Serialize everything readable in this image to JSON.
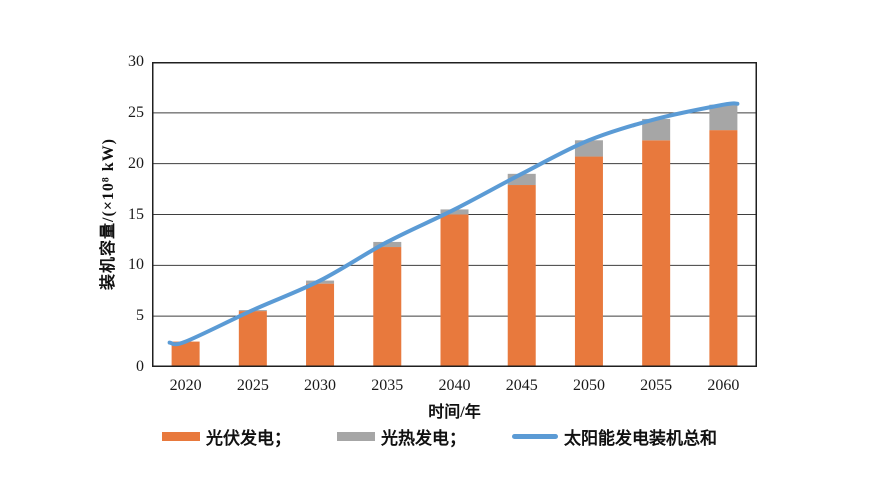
{
  "chart_data": {
    "type": "bar",
    "subtype": "stacked-bars-with-line-overlay",
    "title": "",
    "xlabel": "时间/年",
    "ylabel": "装机容量/(×10⁸ kW)",
    "categories": [
      "2020",
      "2025",
      "2030",
      "2035",
      "2040",
      "2045",
      "2050",
      "2055",
      "2060"
    ],
    "series": [
      {
        "name": "光伏发电",
        "type": "bar",
        "color": "#E8793D",
        "values": [
          2.5,
          5.5,
          8.2,
          11.8,
          15.0,
          17.9,
          20.7,
          22.3,
          23.3
        ]
      },
      {
        "name": "光热发电",
        "type": "bar",
        "color": "#A6A6A6",
        "values": [
          0,
          0.1,
          0.3,
          0.5,
          0.5,
          1.1,
          1.6,
          2.1,
          2.5
        ]
      },
      {
        "name": "太阳能发电装机总和",
        "type": "line",
        "color": "#5B9BD5",
        "values": [
          2.5,
          5.6,
          8.5,
          12.3,
          15.5,
          19.0,
          22.3,
          24.4,
          25.8
        ]
      }
    ],
    "ylim": [
      0,
      30
    ],
    "yticks": [
      0,
      5,
      10,
      15,
      20,
      25,
      30
    ],
    "grid": "horizontal",
    "gridline_color": "#3f3f3f",
    "border_color": "#1f1f1f",
    "legend_position": "bottom",
    "legend": [
      "光伏发电；",
      "光热发电；",
      "太阳能发电装机总和"
    ]
  }
}
